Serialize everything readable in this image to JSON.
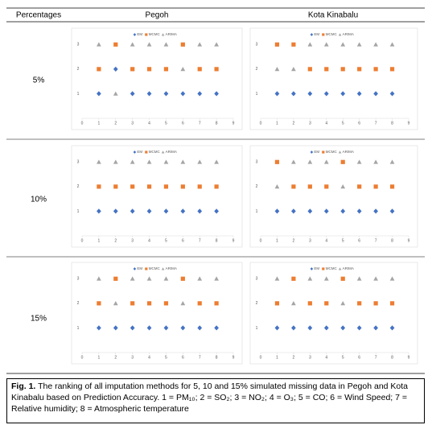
{
  "table": {
    "header": [
      "Percentages",
      "Pegoh",
      "Kota Kinabalu"
    ],
    "rows": [
      "5%",
      "10%",
      "15%"
    ]
  },
  "caption": {
    "label": "Fig. 1.",
    "text": "The ranking of all imputation methods for 5, 10 and 15% simulated missing data in Pegoh and Kota Kinabalu based on Prediction Accuracy. 1 = PM₁₀; 2 = SO₂; 3 = NO₂; 4 = O₃; 5 = CO; 6 = Wind Speed; 7 = Relative humidity; 8 = Atmospheric temperature"
  },
  "chart_data": [
    {
      "type": "scatter",
      "x": [
        1,
        2,
        3,
        4,
        5,
        6,
        7,
        8
      ],
      "xlim": [
        0,
        9
      ],
      "xticks": [
        0,
        1,
        2,
        3,
        4,
        5,
        6,
        7,
        8,
        9
      ],
      "ylim": [
        0,
        3.5
      ],
      "yticks": [
        1,
        2,
        3
      ],
      "series": [
        {
          "name": "EM",
          "color": "#4472c4",
          "marker": "diamond",
          "values": [
            1,
            2,
            1,
            1,
            1,
            1,
            1,
            1
          ]
        },
        {
          "name": "MCMC",
          "color": "#ed7d31",
          "marker": "square",
          "values": [
            2,
            3,
            2,
            2,
            2,
            3,
            2,
            2
          ]
        },
        {
          "name": "ARIMA",
          "color": "#a5a5a5",
          "marker": "triangle",
          "values": [
            3,
            1,
            3,
            3,
            3,
            2,
            3,
            3
          ]
        }
      ]
    },
    {
      "type": "scatter",
      "x": [
        1,
        2,
        3,
        4,
        5,
        6,
        7,
        8
      ],
      "xlim": [
        0,
        9
      ],
      "xticks": [
        0,
        1,
        2,
        3,
        4,
        5,
        6,
        7,
        8,
        9
      ],
      "ylim": [
        0,
        3.5
      ],
      "yticks": [
        1,
        2,
        3
      ],
      "series": [
        {
          "name": "EM",
          "color": "#4472c4",
          "marker": "diamond",
          "values": [
            1,
            1,
            1,
            1,
            1,
            1,
            1,
            1
          ]
        },
        {
          "name": "MCMC",
          "color": "#ed7d31",
          "marker": "square",
          "values": [
            3,
            3,
            2,
            2,
            2,
            2,
            2,
            2
          ]
        },
        {
          "name": "ARIMA",
          "color": "#a5a5a5",
          "marker": "triangle",
          "values": [
            2,
            2,
            3,
            3,
            3,
            3,
            3,
            3
          ]
        }
      ]
    },
    {
      "type": "scatter",
      "x": [
        1,
        2,
        3,
        4,
        5,
        6,
        7,
        8
      ],
      "xlim": [
        0,
        9
      ],
      "xticks": [
        0,
        1,
        2,
        3,
        4,
        5,
        6,
        7,
        8,
        9
      ],
      "ylim": [
        0,
        3.5
      ],
      "yticks": [
        1,
        2,
        3
      ],
      "series": [
        {
          "name": "EM",
          "color": "#4472c4",
          "marker": "diamond",
          "values": [
            1,
            1,
            1,
            1,
            1,
            1,
            1,
            1
          ]
        },
        {
          "name": "MCMC",
          "color": "#ed7d31",
          "marker": "square",
          "values": [
            2,
            2,
            2,
            2,
            2,
            2,
            2,
            2
          ]
        },
        {
          "name": "ARIMA",
          "color": "#a5a5a5",
          "marker": "triangle",
          "values": [
            3,
            3,
            3,
            3,
            3,
            3,
            3,
            3
          ]
        }
      ]
    },
    {
      "type": "scatter",
      "x": [
        1,
        2,
        3,
        4,
        5,
        6,
        7,
        8
      ],
      "xlim": [
        0,
        9
      ],
      "xticks": [
        0,
        1,
        2,
        3,
        4,
        5,
        6,
        7,
        8,
        9
      ],
      "ylim": [
        0,
        3.5
      ],
      "yticks": [
        1,
        2,
        3
      ],
      "series": [
        {
          "name": "EM",
          "color": "#4472c4",
          "marker": "diamond",
          "values": [
            1,
            1,
            1,
            1,
            1,
            1,
            1,
            1
          ]
        },
        {
          "name": "MCMC",
          "color": "#ed7d31",
          "marker": "square",
          "values": [
            3,
            2,
            2,
            2,
            3,
            2,
            2,
            2
          ]
        },
        {
          "name": "ARIMA",
          "color": "#a5a5a5",
          "marker": "triangle",
          "values": [
            2,
            3,
            3,
            3,
            2,
            3,
            3,
            3
          ]
        }
      ]
    },
    {
      "type": "scatter",
      "x": [
        1,
        2,
        3,
        4,
        5,
        6,
        7,
        8
      ],
      "xlim": [
        0,
        9
      ],
      "xticks": [
        0,
        1,
        2,
        3,
        4,
        5,
        6,
        7,
        8,
        9
      ],
      "ylim": [
        0,
        3.5
      ],
      "yticks": [
        1,
        2,
        3
      ],
      "series": [
        {
          "name": "EM",
          "color": "#4472c4",
          "marker": "diamond",
          "values": [
            1,
            1,
            1,
            1,
            1,
            1,
            1,
            1
          ]
        },
        {
          "name": "MCMC",
          "color": "#ed7d31",
          "marker": "square",
          "values": [
            2,
            3,
            2,
            2,
            2,
            3,
            2,
            2
          ]
        },
        {
          "name": "ARIMA",
          "color": "#a5a5a5",
          "marker": "triangle",
          "values": [
            3,
            2,
            3,
            3,
            3,
            2,
            3,
            3
          ]
        }
      ]
    },
    {
      "type": "scatter",
      "x": [
        1,
        2,
        3,
        4,
        5,
        6,
        7,
        8
      ],
      "xlim": [
        0,
        9
      ],
      "xticks": [
        0,
        1,
        2,
        3,
        4,
        5,
        6,
        7,
        8,
        9
      ],
      "ylim": [
        0,
        3.5
      ],
      "yticks": [
        1,
        2,
        3
      ],
      "series": [
        {
          "name": "EM",
          "color": "#4472c4",
          "marker": "diamond",
          "values": [
            1,
            1,
            1,
            1,
            1,
            1,
            1,
            1
          ]
        },
        {
          "name": "MCMC",
          "color": "#ed7d31",
          "marker": "square",
          "values": [
            2,
            3,
            2,
            2,
            3,
            2,
            2,
            2
          ]
        },
        {
          "name": "ARIMA",
          "color": "#a5a5a5",
          "marker": "triangle",
          "values": [
            3,
            2,
            3,
            3,
            2,
            3,
            3,
            3
          ]
        }
      ]
    }
  ]
}
